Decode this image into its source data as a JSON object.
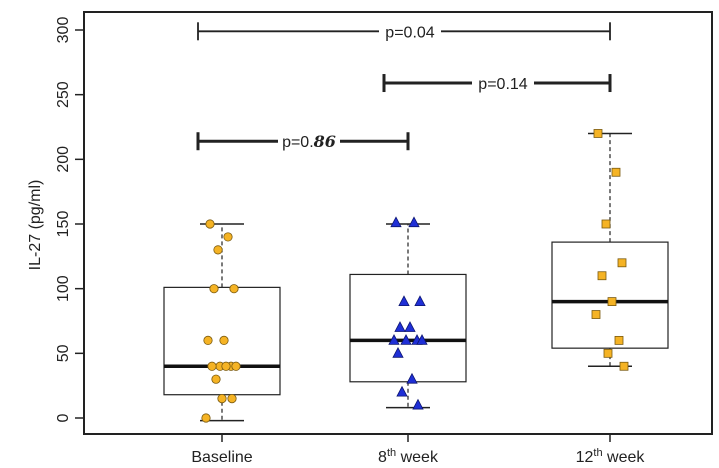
{
  "chart_data": {
    "type": "box",
    "ylabel": "IL-27 (pg/ml)",
    "ylim": [
      -12,
      312
    ],
    "yticks": [
      "0",
      "50",
      "100",
      "150",
      "200",
      "250",
      "300"
    ],
    "ytick_values": [
      0,
      50,
      100,
      150,
      200,
      250,
      300
    ],
    "grid": false,
    "groups": [
      {
        "label": "Baseline",
        "label_sup": "",
        "marker": "circle",
        "color": "#f5b324",
        "box": {
          "whisker_low": -2,
          "q1": 18,
          "median": 40,
          "q3": 101,
          "whisker_high": 150
        },
        "points": [
          150,
          140,
          130,
          100,
          100,
          60,
          60,
          40,
          40,
          40,
          40,
          40,
          30,
          15,
          15,
          0
        ]
      },
      {
        "label": "8",
        "label_sup": "th",
        "label_suffix": " week",
        "marker": "triangle",
        "color": "#1f2fd6",
        "box": {
          "whisker_low": 8,
          "q1": 28,
          "median": 60,
          "q3": 111,
          "whisker_high": 150
        },
        "points": [
          151,
          151,
          90,
          90,
          70,
          70,
          60,
          60,
          60,
          60,
          50,
          30,
          20,
          10
        ]
      },
      {
        "label": "12",
        "label_sup": "th",
        "label_suffix": " week",
        "marker": "square",
        "color": "#f5b324",
        "box": {
          "whisker_low": 40,
          "q1": 54,
          "median": 90,
          "q3": 136,
          "whisker_high": 220
        },
        "points": [
          220,
          190,
          150,
          120,
          110,
          90,
          80,
          60,
          50,
          40
        ]
      }
    ],
    "annotations": [
      {
        "from": 0,
        "to": 1,
        "y": 214,
        "prefix": "p=0.",
        "emph": "86"
      },
      {
        "from": 1,
        "to": 2,
        "y": 259,
        "prefix": "p=0.14",
        "emph": ""
      },
      {
        "from": 0,
        "to": 2,
        "y": 299,
        "prefix": "p=0.04",
        "emph": ""
      }
    ]
  }
}
